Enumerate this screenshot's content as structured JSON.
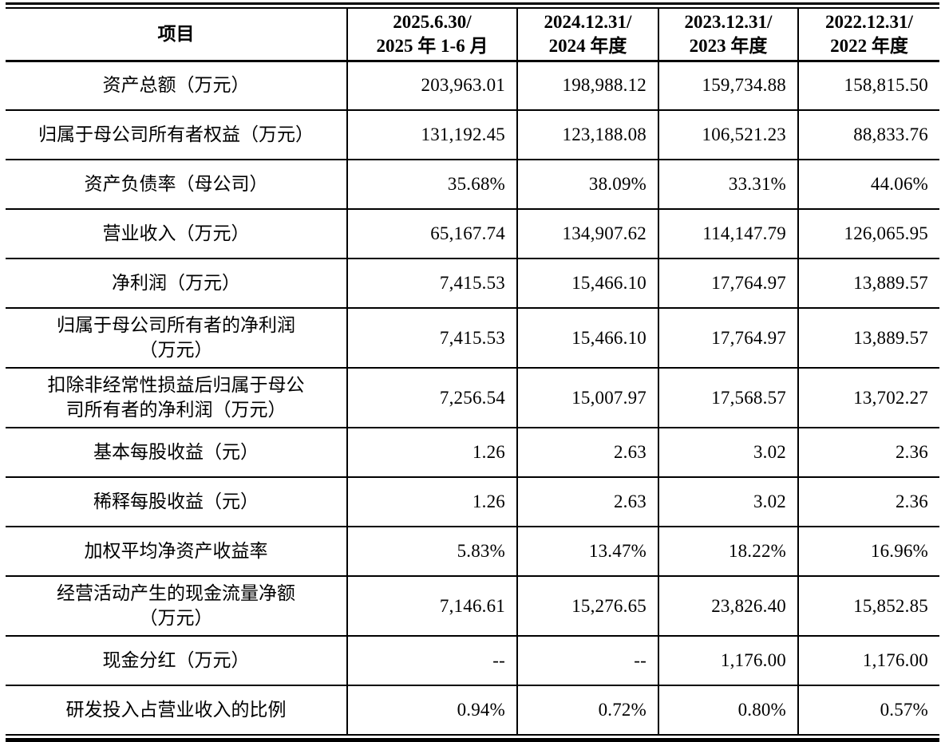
{
  "colors": {
    "background": "#ffffff",
    "text": "#000000",
    "border": "#000000"
  },
  "table": {
    "header": {
      "item_col": "项目",
      "period_cols": [
        {
          "line1": "2025.6.30/",
          "line2": "2025 年 1-6 月"
        },
        {
          "line1": "2024.12.31/",
          "line2": "2024 年度"
        },
        {
          "line1": "2023.12.31/",
          "line2": "2023 年度"
        },
        {
          "line1": "2022.12.31/",
          "line2": "2022 年度"
        }
      ]
    },
    "rows": [
      {
        "label": [
          "资产总额（万元）"
        ],
        "values": [
          "203,963.01",
          "198,988.12",
          "159,734.88",
          "158,815.50"
        ]
      },
      {
        "label": [
          "归属于母公司所有者权益（万元）"
        ],
        "values": [
          "131,192.45",
          "123,188.08",
          "106,521.23",
          "88,833.76"
        ]
      },
      {
        "label": [
          "资产负债率（母公司）"
        ],
        "values": [
          "35.68%",
          "38.09%",
          "33.31%",
          "44.06%"
        ]
      },
      {
        "label": [
          "营业收入（万元）"
        ],
        "values": [
          "65,167.74",
          "134,907.62",
          "114,147.79",
          "126,065.95"
        ]
      },
      {
        "label": [
          "净利润（万元）"
        ],
        "values": [
          "7,415.53",
          "15,466.10",
          "17,764.97",
          "13,889.57"
        ]
      },
      {
        "label": [
          "归属于母公司所有者的净利润",
          "（万元）"
        ],
        "values": [
          "7,415.53",
          "15,466.10",
          "17,764.97",
          "13,889.57"
        ]
      },
      {
        "label": [
          "扣除非经常性损益后归属于母公",
          "司所有者的净利润（万元）"
        ],
        "values": [
          "7,256.54",
          "15,007.97",
          "17,568.57",
          "13,702.27"
        ]
      },
      {
        "label": [
          "基本每股收益（元）"
        ],
        "values": [
          "1.26",
          "2.63",
          "3.02",
          "2.36"
        ]
      },
      {
        "label": [
          "稀释每股收益（元）"
        ],
        "values": [
          "1.26",
          "2.63",
          "3.02",
          "2.36"
        ]
      },
      {
        "label": [
          "加权平均净资产收益率"
        ],
        "values": [
          "5.83%",
          "13.47%",
          "18.22%",
          "16.96%"
        ]
      },
      {
        "label": [
          "经营活动产生的现金流量净额",
          "（万元）"
        ],
        "values": [
          "7,146.61",
          "15,276.65",
          "23,826.40",
          "15,852.85"
        ]
      },
      {
        "label": [
          "现金分红（万元）"
        ],
        "values": [
          "--",
          "--",
          "1,176.00",
          "1,176.00"
        ]
      },
      {
        "label": [
          "研发投入占营业收入的比例"
        ],
        "values": [
          "0.94%",
          "0.72%",
          "0.80%",
          "0.57%"
        ]
      }
    ]
  }
}
